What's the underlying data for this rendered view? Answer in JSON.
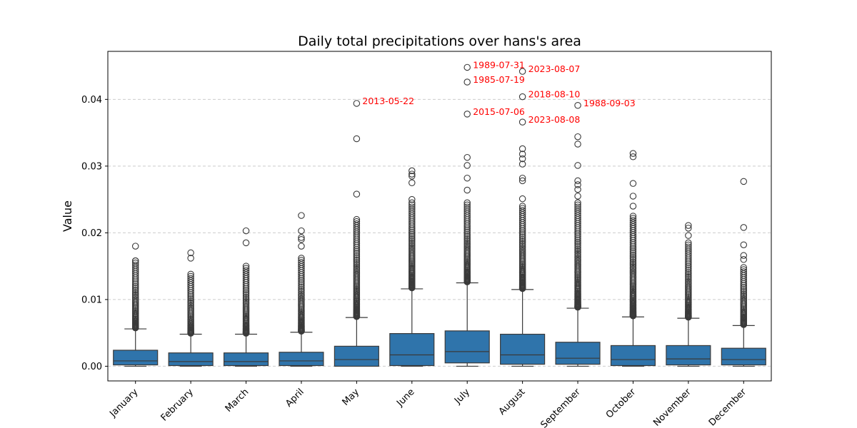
{
  "chart_data": {
    "type": "box",
    "title": "Daily total precipitations over hans's area",
    "xlabel": "",
    "ylabel": "Value",
    "ylim": [
      -0.0022,
      0.0472
    ],
    "yticks": [
      0.0,
      0.01,
      0.02,
      0.03,
      0.04
    ],
    "ytick_labels": [
      "0.00",
      "0.01",
      "0.02",
      "0.03",
      "0.04"
    ],
    "grid": "y-dashed",
    "colors": {
      "box": "#2f74ab",
      "edge": "#3a3a3a",
      "annotation": "#ff0000",
      "grid": "#cccccc"
    },
    "categories": [
      "January",
      "February",
      "March",
      "April",
      "May",
      "June",
      "July",
      "August",
      "September",
      "October",
      "November",
      "December"
    ],
    "boxes": [
      {
        "min": 0.0,
        "q1": 0.0002,
        "median": 0.0008,
        "q3": 0.0024,
        "whisker_high": 0.0056,
        "outlier_top": 0.0158,
        "max_outliers": [
          0.0158,
          0.018
        ]
      },
      {
        "min": 0.0,
        "q1": 0.0001,
        "median": 0.0007,
        "q3": 0.002,
        "whisker_high": 0.0048,
        "outlier_top": 0.0138,
        "max_outliers": [
          0.0162,
          0.017
        ]
      },
      {
        "min": 0.0,
        "q1": 0.0001,
        "median": 0.0007,
        "q3": 0.002,
        "whisker_high": 0.0048,
        "outlier_top": 0.015,
        "max_outliers": [
          0.0185,
          0.0203
        ]
      },
      {
        "min": 0.0,
        "q1": 0.0001,
        "median": 0.0008,
        "q3": 0.0021,
        "whisker_high": 0.0051,
        "outlier_top": 0.0162,
        "max_outliers": [
          0.018,
          0.019,
          0.0193,
          0.0203,
          0.0226
        ]
      },
      {
        "min": 0.0,
        "q1": 0.0,
        "median": 0.001,
        "q3": 0.003,
        "whisker_high": 0.0073,
        "outlier_top": 0.022,
        "max_outliers": [
          0.0258,
          0.0341,
          0.0394
        ]
      },
      {
        "min": 0.0,
        "q1": 0.0001,
        "median": 0.0017,
        "q3": 0.0049,
        "whisker_high": 0.0116,
        "outlier_top": 0.0245,
        "max_outliers": [
          0.025,
          0.0275,
          0.0285,
          0.0288,
          0.0293
        ]
      },
      {
        "min": 0.0,
        "q1": 0.0005,
        "median": 0.0022,
        "q3": 0.0053,
        "whisker_high": 0.0125,
        "outlier_top": 0.0245,
        "max_outliers": [
          0.0264,
          0.0282,
          0.0301,
          0.0313,
          0.0378,
          0.0426,
          0.0448
        ]
      },
      {
        "min": 0.0,
        "q1": 0.0003,
        "median": 0.0017,
        "q3": 0.0048,
        "whisker_high": 0.0115,
        "outlier_top": 0.024,
        "max_outliers": [
          0.0251,
          0.0278,
          0.0282,
          0.0303,
          0.0311,
          0.0318,
          0.0326,
          0.0366,
          0.0404,
          0.0442
        ]
      },
      {
        "min": 0.0,
        "q1": 0.0003,
        "median": 0.0012,
        "q3": 0.0036,
        "whisker_high": 0.0087,
        "outlier_top": 0.0245,
        "max_outliers": [
          0.0255,
          0.0265,
          0.0272,
          0.0278,
          0.0301,
          0.0333,
          0.0344,
          0.0391
        ]
      },
      {
        "min": 0.0,
        "q1": 0.0001,
        "median": 0.001,
        "q3": 0.0031,
        "whisker_high": 0.0074,
        "outlier_top": 0.0225,
        "max_outliers": [
          0.024,
          0.0255,
          0.0274,
          0.0314,
          0.0319
        ]
      },
      {
        "min": 0.0,
        "q1": 0.0002,
        "median": 0.0011,
        "q3": 0.0031,
        "whisker_high": 0.0072,
        "outlier_top": 0.0185,
        "max_outliers": [
          0.0196,
          0.0207,
          0.0211
        ]
      },
      {
        "min": 0.0,
        "q1": 0.0002,
        "median": 0.001,
        "q3": 0.0027,
        "whisker_high": 0.0061,
        "outlier_top": 0.0148,
        "max_outliers": [
          0.016,
          0.0166,
          0.0182,
          0.0208,
          0.0277
        ]
      }
    ],
    "annotations": [
      {
        "category": "May",
        "y": 0.0394,
        "text": "2013-05-22"
      },
      {
        "category": "July",
        "y": 0.0448,
        "text": "1989-07-31"
      },
      {
        "category": "July",
        "y": 0.0426,
        "text": "1985-07-19"
      },
      {
        "category": "July",
        "y": 0.0378,
        "text": "2015-07-06"
      },
      {
        "category": "August",
        "y": 0.0442,
        "text": "2023-08-07"
      },
      {
        "category": "August",
        "y": 0.0404,
        "text": "2018-08-10"
      },
      {
        "category": "August",
        "y": 0.0366,
        "text": "2023-08-08"
      },
      {
        "category": "September",
        "y": 0.0391,
        "text": "1988-09-03"
      }
    ]
  }
}
